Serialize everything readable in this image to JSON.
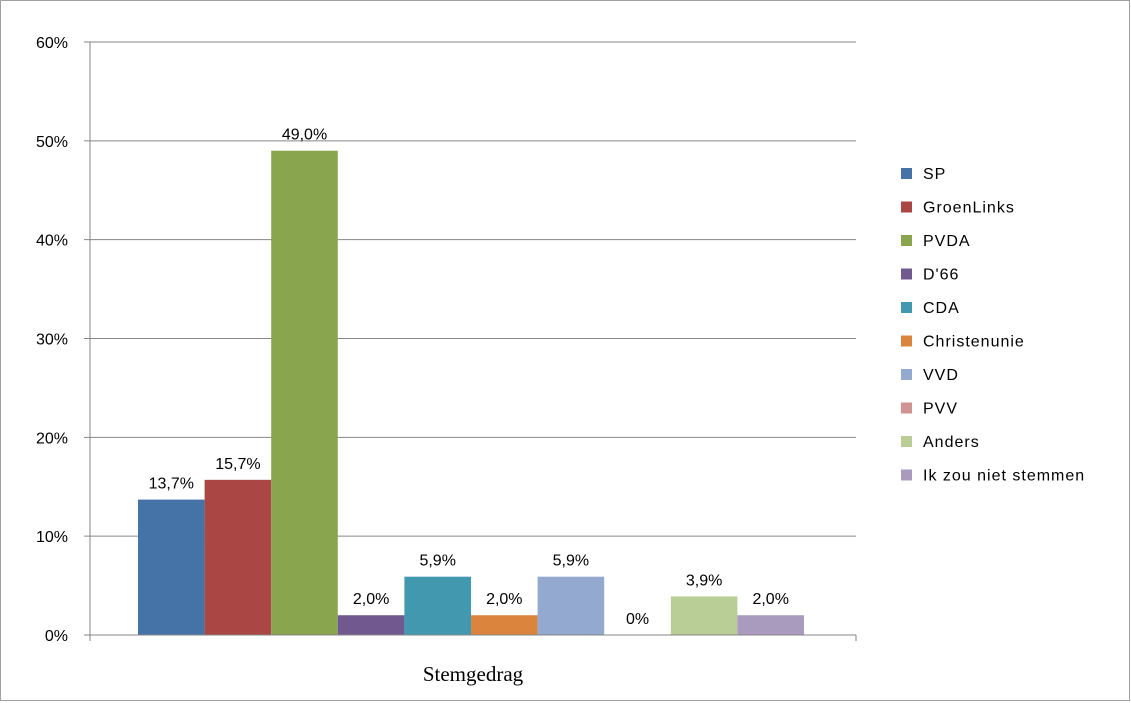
{
  "chart_data": {
    "type": "bar",
    "xlabel": "Stemgedrag",
    "ylabel": "",
    "title": "",
    "categories": [
      "Stemgedrag"
    ],
    "ylim": [
      0,
      60
    ],
    "yticks": [
      "0%",
      "10%",
      "20%",
      "30%",
      "40%",
      "50%",
      "60%"
    ],
    "grid": true,
    "legend_position": "right",
    "series": [
      {
        "name": "SP",
        "value": 13.7,
        "label": "13,7%",
        "color": "#4572a7"
      },
      {
        "name": "GroenLinks",
        "value": 15.7,
        "label": "15,7%",
        "color": "#aa4643"
      },
      {
        "name": "PVDA",
        "value": 49.0,
        "label": "49,0%",
        "color": "#89a54e"
      },
      {
        "name": "D'66",
        "value": 2.0,
        "label": "2,0%",
        "color": "#71588f"
      },
      {
        "name": "CDA",
        "value": 5.9,
        "label": "5,9%",
        "color": "#4198af"
      },
      {
        "name": "Christenunie",
        "value": 2.0,
        "label": "2,0%",
        "color": "#db843d"
      },
      {
        "name": "VVD",
        "value": 5.9,
        "label": "5,9%",
        "color": "#93a9cf"
      },
      {
        "name": "PVV",
        "value": 0,
        "label": "0%",
        "color": "#d19392"
      },
      {
        "name": "Anders",
        "value": 3.9,
        "label": "3,9%",
        "color": "#b9cd96"
      },
      {
        "name": "Ik zou niet stemmen",
        "value": 2.0,
        "label": "2,0%",
        "color": "#a99bbd"
      }
    ]
  }
}
